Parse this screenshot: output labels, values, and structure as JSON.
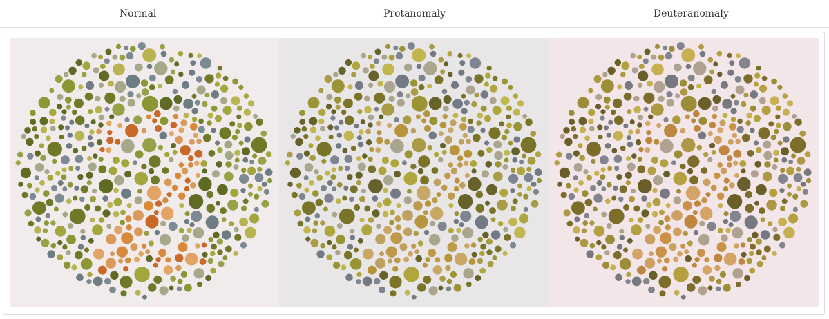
{
  "table": {
    "headers": [
      "Normal",
      "Protanomaly",
      "Deuteranomaly"
    ]
  }
}
